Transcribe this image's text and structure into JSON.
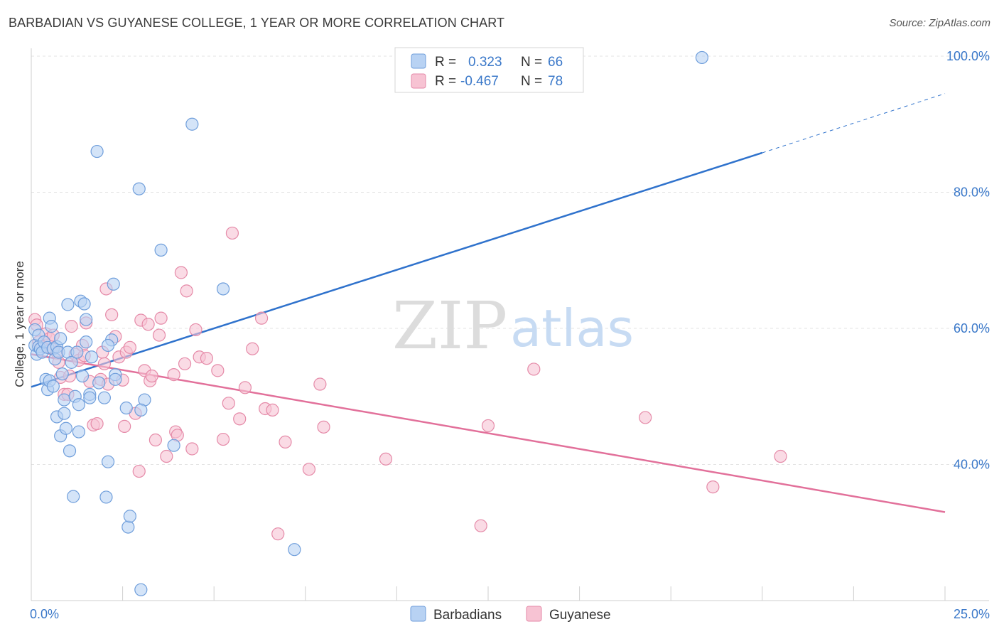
{
  "title": "BARBADIAN VS GUYANESE COLLEGE, 1 YEAR OR MORE CORRELATION CHART",
  "source": "Source: ZipAtlas.com",
  "watermark": {
    "zip": "ZIP",
    "atlas": "atlas"
  },
  "colors": {
    "blue_fill": "#b8d2f3",
    "blue_stroke": "#6f9edb",
    "blue_line": "#2f72cc",
    "pink_fill": "#f7c3d3",
    "pink_stroke": "#e58aa8",
    "pink_line": "#e2709a",
    "axis_text": "#3a78c9",
    "grid": "#e3e3e3"
  },
  "legend": {
    "rows": [
      {
        "r_label": "R =",
        "r_value": "0.323",
        "n_label": "N =",
        "n_value": "66",
        "series": "Barbadians"
      },
      {
        "r_label": "R =",
        "r_value": "-0.467",
        "n_label": "N =",
        "n_value": "78",
        "series": "Guyanese"
      }
    ]
  },
  "chart_data": {
    "type": "scatter",
    "title": "BARBADIAN VS GUYANESE COLLEGE, 1 YEAR OR MORE CORRELATION CHART",
    "xlabel": "",
    "ylabel": "College, 1 year or more",
    "xlim": [
      0,
      25
    ],
    "ylim": [
      20,
      100
    ],
    "x_tick_labels": [
      "0.0%",
      "25.0%"
    ],
    "y_ticks": [
      40,
      60,
      80,
      100
    ],
    "y_tick_labels": [
      "40.0%",
      "60.0%",
      "80.0%",
      "100.0%"
    ],
    "legend_position": "bottom",
    "series": [
      {
        "name": "Barbadians",
        "color": "#6f9edb",
        "r": 0.323,
        "n": 66,
        "trend": {
          "x0": 0,
          "y0": 51.4,
          "x1": 20,
          "y1": 85.8,
          "dash_to_x": 25,
          "dash_to_y": 94.5
        },
        "points": [
          [
            0.1,
            59.8
          ],
          [
            0.1,
            57.5
          ],
          [
            0.15,
            56.2
          ],
          [
            0.2,
            57.3
          ],
          [
            0.2,
            59.0
          ],
          [
            0.25,
            57.0
          ],
          [
            0.3,
            56.5
          ],
          [
            0.35,
            58.0
          ],
          [
            0.4,
            52.5
          ],
          [
            0.45,
            51.0
          ],
          [
            0.45,
            57.2
          ],
          [
            0.5,
            52.3
          ],
          [
            0.5,
            61.5
          ],
          [
            0.55,
            60.3
          ],
          [
            0.6,
            57.0
          ],
          [
            0.6,
            51.5
          ],
          [
            0.65,
            55.5
          ],
          [
            0.7,
            57.3
          ],
          [
            0.7,
            47.0
          ],
          [
            0.75,
            56.5
          ],
          [
            0.8,
            58.5
          ],
          [
            0.8,
            44.2
          ],
          [
            0.85,
            53.3
          ],
          [
            0.9,
            49.5
          ],
          [
            0.9,
            47.5
          ],
          [
            0.95,
            45.3
          ],
          [
            1.0,
            56.5
          ],
          [
            1.0,
            63.5
          ],
          [
            1.05,
            42.0
          ],
          [
            1.1,
            55.0
          ],
          [
            1.15,
            35.3
          ],
          [
            1.2,
            50.0
          ],
          [
            1.25,
            56.5
          ],
          [
            1.3,
            44.8
          ],
          [
            1.3,
            48.8
          ],
          [
            1.35,
            64.0
          ],
          [
            1.4,
            53.0
          ],
          [
            1.45,
            63.6
          ],
          [
            1.5,
            58.0
          ],
          [
            1.5,
            61.3
          ],
          [
            1.6,
            50.3
          ],
          [
            1.6,
            49.8
          ],
          [
            1.65,
            55.8
          ],
          [
            1.8,
            86.0
          ],
          [
            1.85,
            52.0
          ],
          [
            2.0,
            49.8
          ],
          [
            2.05,
            35.2
          ],
          [
            2.1,
            40.4
          ],
          [
            2.2,
            58.3
          ],
          [
            2.25,
            66.5
          ],
          [
            2.3,
            53.2
          ],
          [
            2.3,
            52.5
          ],
          [
            2.6,
            48.3
          ],
          [
            2.65,
            30.8
          ],
          [
            2.7,
            32.4
          ],
          [
            2.95,
            80.5
          ],
          [
            3.0,
            21.6
          ],
          [
            3.1,
            49.5
          ],
          [
            3.55,
            71.5
          ],
          [
            3.0,
            48.0
          ],
          [
            3.9,
            42.8
          ],
          [
            4.4,
            90.0
          ],
          [
            5.25,
            65.8
          ],
          [
            7.2,
            27.5
          ],
          [
            18.35,
            99.8
          ],
          [
            2.1,
            57.5
          ]
        ]
      },
      {
        "name": "Guyanese",
        "color": "#e58aa8",
        "r": -0.467,
        "n": 78,
        "trend": {
          "x0": 0,
          "y0": 56.2,
          "x1": 25,
          "y1": 33.0
        },
        "points": [
          [
            0.1,
            61.3
          ],
          [
            0.15,
            60.5
          ],
          [
            0.2,
            58.0
          ],
          [
            0.3,
            57.3
          ],
          [
            0.4,
            59.2
          ],
          [
            0.5,
            58.5
          ],
          [
            0.55,
            57.0
          ],
          [
            0.6,
            59.0
          ],
          [
            0.7,
            56.5
          ],
          [
            0.75,
            55.0
          ],
          [
            0.8,
            52.8
          ],
          [
            0.9,
            50.3
          ],
          [
            1.0,
            50.3
          ],
          [
            1.05,
            53.0
          ],
          [
            1.1,
            60.3
          ],
          [
            1.2,
            56.2
          ],
          [
            1.3,
            55.3
          ],
          [
            1.4,
            57.5
          ],
          [
            1.45,
            56.0
          ],
          [
            1.5,
            60.8
          ],
          [
            1.6,
            52.2
          ],
          [
            1.7,
            45.8
          ],
          [
            1.8,
            46.0
          ],
          [
            1.9,
            52.5
          ],
          [
            1.95,
            56.5
          ],
          [
            2.0,
            54.8
          ],
          [
            2.05,
            65.8
          ],
          [
            2.1,
            51.8
          ],
          [
            2.2,
            62.0
          ],
          [
            2.3,
            58.8
          ],
          [
            2.4,
            55.8
          ],
          [
            2.5,
            52.4
          ],
          [
            2.55,
            45.6
          ],
          [
            2.6,
            56.5
          ],
          [
            2.7,
            57.2
          ],
          [
            2.85,
            47.5
          ],
          [
            2.95,
            39.0
          ],
          [
            3.0,
            61.2
          ],
          [
            3.1,
            53.8
          ],
          [
            3.2,
            60.6
          ],
          [
            3.25,
            52.3
          ],
          [
            3.3,
            53.0
          ],
          [
            3.4,
            43.6
          ],
          [
            3.5,
            59.0
          ],
          [
            3.55,
            61.5
          ],
          [
            3.7,
            41.2
          ],
          [
            3.9,
            53.2
          ],
          [
            3.95,
            44.8
          ],
          [
            4.0,
            44.3
          ],
          [
            4.1,
            68.2
          ],
          [
            4.2,
            54.8
          ],
          [
            4.25,
            65.5
          ],
          [
            4.4,
            42.3
          ],
          [
            4.5,
            59.8
          ],
          [
            4.6,
            55.8
          ],
          [
            4.8,
            55.6
          ],
          [
            5.1,
            53.8
          ],
          [
            5.25,
            43.7
          ],
          [
            5.4,
            49.0
          ],
          [
            5.5,
            74.0
          ],
          [
            5.7,
            46.7
          ],
          [
            5.85,
            51.3
          ],
          [
            6.05,
            57.0
          ],
          [
            6.3,
            61.5
          ],
          [
            6.4,
            48.2
          ],
          [
            6.6,
            48.0
          ],
          [
            6.75,
            29.8
          ],
          [
            6.95,
            43.3
          ],
          [
            7.6,
            39.3
          ],
          [
            7.9,
            51.8
          ],
          [
            8.0,
            45.5
          ],
          [
            9.7,
            40.8
          ],
          [
            12.3,
            31.0
          ],
          [
            12.5,
            45.7
          ],
          [
            13.75,
            54.0
          ],
          [
            16.8,
            46.9
          ],
          [
            18.65,
            36.7
          ],
          [
            20.5,
            41.2
          ]
        ]
      }
    ]
  }
}
